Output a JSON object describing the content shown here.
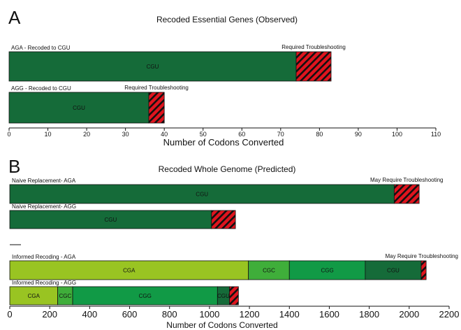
{
  "chart_data": [
    {
      "panel_label": "A",
      "title": "Recoded Essential Genes (Observed)",
      "type": "bar",
      "orientation": "horizontal",
      "stacked": true,
      "xlabel": "Number of Codons Converted",
      "xlim": [
        0,
        110
      ],
      "xticks": [
        0,
        10,
        20,
        30,
        40,
        50,
        60,
        70,
        80,
        90,
        100,
        110
      ],
      "rows": [
        {
          "label": "AGA - Recoded to CGU",
          "segments": [
            {
              "label": "CGU",
              "value": 74,
              "color": "#156b39"
            },
            {
              "label": "",
              "value": 9,
              "color": "#e0141e",
              "hatched": true
            }
          ],
          "annotation": "Required Troubleshooting"
        },
        {
          "label": "AGG - Recoded to CGU",
          "segments": [
            {
              "label": "CGU",
              "value": 36,
              "color": "#156b39"
            },
            {
              "label": "",
              "value": 4,
              "color": "#e0141e",
              "hatched": true
            }
          ],
          "annotation": "Required Troubleshooting"
        }
      ]
    },
    {
      "panel_label": "B",
      "title": "Recoded Whole Genome (Predicted)",
      "type": "bar",
      "orientation": "horizontal",
      "stacked": true,
      "xlabel": "Number of Codons Converted",
      "xlim": [
        0,
        2200
      ],
      "xticks": [
        0,
        200,
        400,
        600,
        800,
        1000,
        1200,
        1400,
        1600,
        1800,
        2000,
        2200
      ],
      "rows": [
        {
          "label": "Naive Replacement- AGA",
          "segments": [
            {
              "label": "CGU",
              "value": 1925,
              "color": "#156b39"
            },
            {
              "label": "",
              "value": 125,
              "color": "#e0141e",
              "hatched": true
            }
          ],
          "annotation": "May Require Troubleshooting"
        },
        {
          "label": "Naive Replacement- AGG",
          "segments": [
            {
              "label": "CGU",
              "value": 1010,
              "color": "#156b39"
            },
            {
              "label": "",
              "value": 120,
              "color": "#e0141e",
              "hatched": true
            }
          ],
          "annotation": ""
        },
        {
          "label": "Informed Recoding - AGA",
          "segments": [
            {
              "label": "CGA",
              "value": 1195,
              "color": "#99c422"
            },
            {
              "label": "CGC",
              "value": 205,
              "color": "#3fae3a"
            },
            {
              "label": "CGG",
              "value": 380,
              "color": "#119a46"
            },
            {
              "label": "CGU",
              "value": 280,
              "color": "#156b39"
            },
            {
              "label": "",
              "value": 25,
              "color": "#e0141e",
              "hatched": true
            }
          ],
          "annotation": "May Require Troubleshooting"
        },
        {
          "label": "Informed Recoding - AGG",
          "segments": [
            {
              "label": "CGA",
              "value": 240,
              "color": "#99c422"
            },
            {
              "label": "CGC",
              "value": 75,
              "color": "#3fae3a"
            },
            {
              "label": "CGG",
              "value": 725,
              "color": "#119a46"
            },
            {
              "label": "CGU",
              "value": 60,
              "color": "#156b39"
            },
            {
              "label": "",
              "value": 45,
              "color": "#e0141e",
              "hatched": true
            }
          ],
          "annotation": ""
        }
      ]
    }
  ]
}
